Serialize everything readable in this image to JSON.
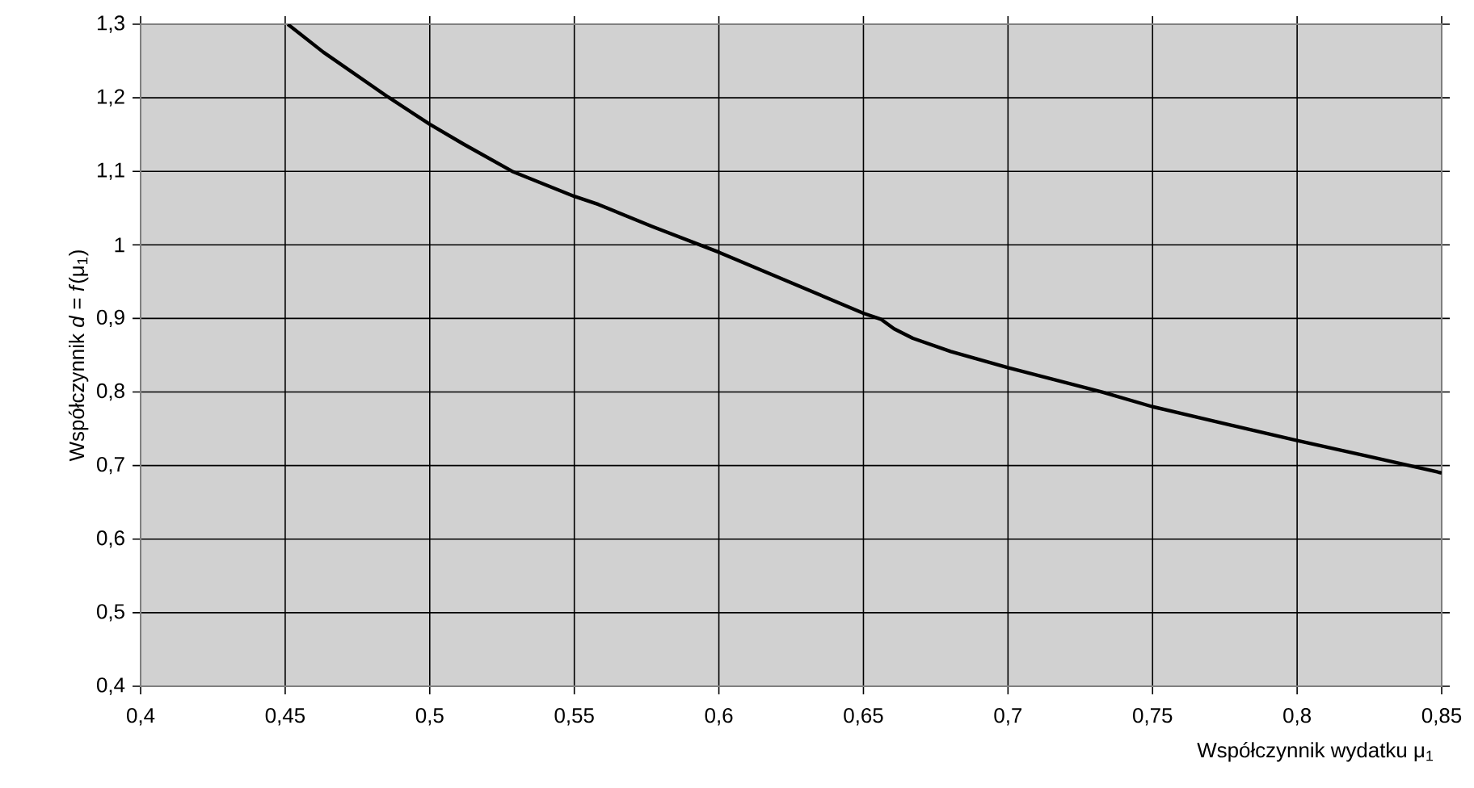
{
  "chart_data": {
    "type": "line",
    "xlabel": "Współczynnik wydatku μ$_{1}$",
    "ylabel": "Współczynnik *d* = *f*(μ$_{1}$)",
    "x": [
      0.4509,
      0.4632,
      0.4856,
      0.5,
      0.5117,
      0.5285,
      0.55,
      0.5583,
      0.5769,
      0.6,
      0.65,
      0.656,
      0.6606,
      0.6671,
      0.6802,
      0.7,
      0.7326,
      0.75,
      0.8,
      0.8242,
      0.85
    ],
    "values": [
      1.3,
      1.262,
      1.201,
      1.164,
      1.137,
      1.1,
      1.066,
      1.055,
      1.025,
      0.99,
      0.907,
      0.899,
      0.886,
      0.873,
      0.855,
      0.833,
      0.8,
      0.78,
      0.734,
      0.713,
      0.69
    ],
    "color": "#000000",
    "xlim": [
      0.4,
      0.85
    ],
    "ylim": [
      0.4,
      1.3
    ],
    "xticks": [
      {
        "value": 0.4,
        "label": "0,4"
      },
      {
        "value": 0.45,
        "label": "0,45"
      },
      {
        "value": 0.5,
        "label": "0,5"
      },
      {
        "value": 0.55,
        "label": "0,55"
      },
      {
        "value": 0.6,
        "label": "0,6"
      },
      {
        "value": 0.65,
        "label": "0,65"
      },
      {
        "value": 0.7,
        "label": "0,7"
      },
      {
        "value": 0.75,
        "label": "0,75"
      },
      {
        "value": 0.8,
        "label": "0,8"
      },
      {
        "value": 0.85,
        "label": "0,85"
      }
    ],
    "yticks": [
      {
        "value": 0.4,
        "label": "0,4"
      },
      {
        "value": 0.5,
        "label": "0,5"
      },
      {
        "value": 0.6,
        "label": "0,6"
      },
      {
        "value": 0.7,
        "label": "0,7"
      },
      {
        "value": 0.8,
        "label": "0,8"
      },
      {
        "value": 0.9,
        "label": "0,9"
      },
      1,
      {
        "value": 1.1,
        "label": "1,1"
      },
      {
        "value": 1.2,
        "label": "1,2"
      },
      {
        "value": 1.3,
        "label": "1,3"
      }
    ],
    "grid": true
  }
}
